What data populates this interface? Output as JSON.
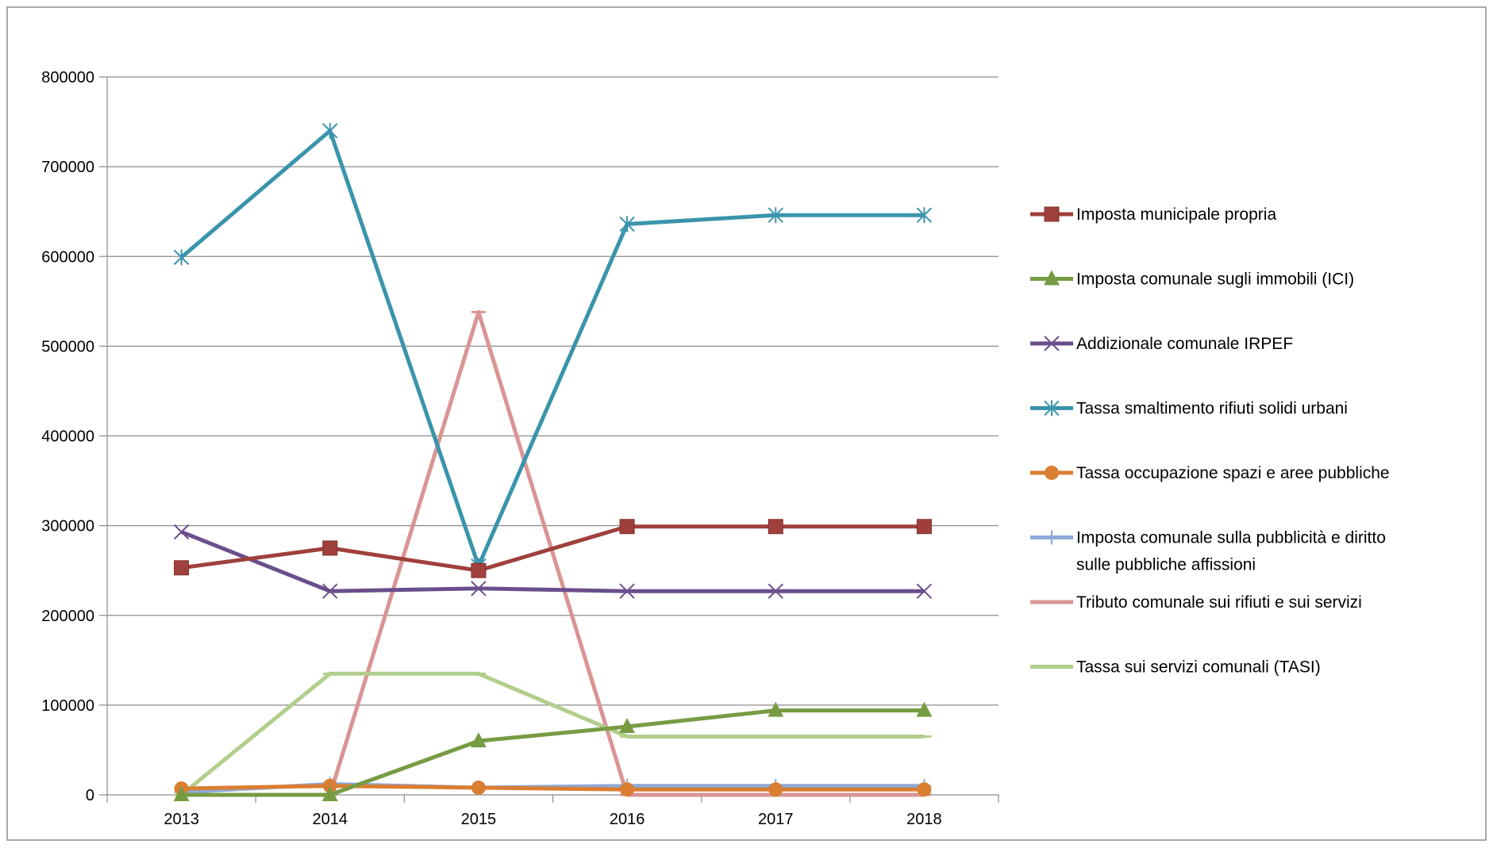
{
  "chart_data": {
    "type": "line",
    "title": "",
    "xlabel": "",
    "ylabel": "",
    "categories": [
      "2013",
      "2014",
      "2015",
      "2016",
      "2017",
      "2018"
    ],
    "yticks": [
      0,
      100000,
      200000,
      300000,
      400000,
      500000,
      600000,
      700000,
      800000
    ],
    "ylim": [
      0,
      800000
    ],
    "grid": "horizontal",
    "legend_position": "right",
    "series": [
      {
        "name": "Imposta municipale propria",
        "color": "#A0403C",
        "marker": "square",
        "values": [
          253000,
          275000,
          250000,
          299000,
          299000,
          299000
        ]
      },
      {
        "name": "Imposta comunale sugli immobili (ICI)",
        "color": "#779B43",
        "marker": "triangle",
        "values": [
          0,
          0,
          60000,
          76000,
          94000,
          94000
        ]
      },
      {
        "name": "Addizionale comunale IRPEF",
        "color": "#6A4E8C",
        "marker": "x",
        "values": [
          293000,
          227000,
          230000,
          227000,
          227000,
          227000
        ]
      },
      {
        "name": "Tassa smaltimento rifiuti solidi urbani",
        "color": "#3A94AB",
        "marker": "asterisk",
        "values": [
          599000,
          740000,
          255000,
          636000,
          646000,
          646000
        ]
      },
      {
        "name": "Tassa occupazione spazi e aree pubbliche",
        "color": "#DA7E32",
        "marker": "circle",
        "values": [
          7000,
          10000,
          8000,
          6000,
          6000,
          6000
        ]
      },
      {
        "name": "Imposta comunale sulla pubblicità e diritto sulle pubbliche affissioni",
        "color": "#8EA9D8",
        "marker": "plus",
        "values": [
          3000,
          12000,
          8000,
          10000,
          10000,
          10000
        ]
      },
      {
        "name": "Tributo comunale sui rifiuti e sui servizi",
        "color": "#D99593",
        "marker": "dash",
        "values": [
          0,
          0,
          538000,
          0,
          0,
          0
        ]
      },
      {
        "name": "Tassa sui servizi comunali (TASI)",
        "color": "#B2CE8C",
        "marker": "dash",
        "values": [
          0,
          135000,
          135000,
          65000,
          65000,
          65000
        ]
      }
    ]
  }
}
